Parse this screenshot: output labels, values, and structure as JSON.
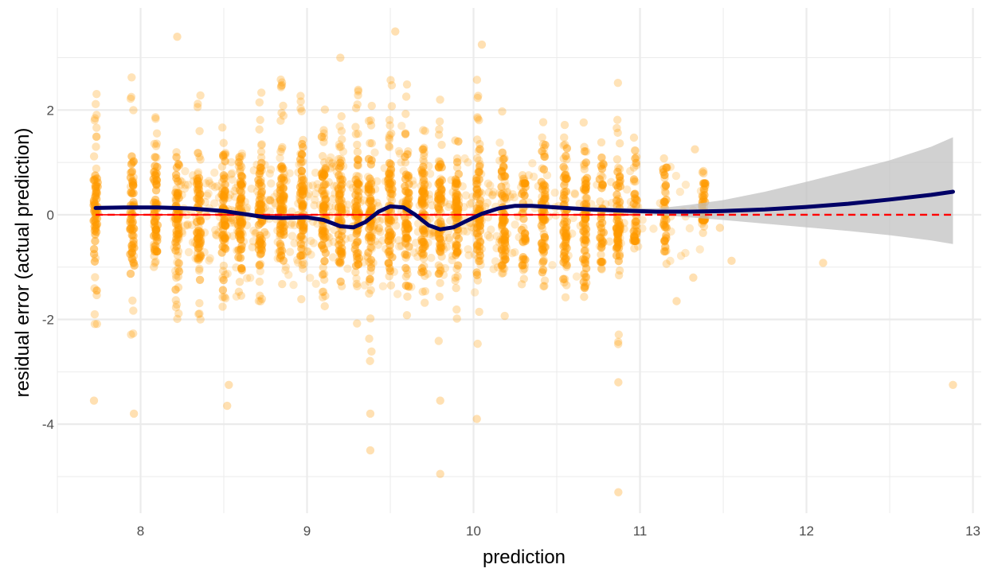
{
  "chart_data": {
    "type": "scatter",
    "title": "",
    "xlabel": "prediction",
    "ylabel": "residual error (actual prediction)",
    "xlim": [
      7.5,
      13.05
    ],
    "ylim": [
      -5.7,
      3.95
    ],
    "x_ticks": [
      8,
      9,
      10,
      11,
      12,
      13
    ],
    "y_ticks": [
      -4,
      -2,
      0,
      2
    ],
    "x_tick_labels": [
      "8",
      "9",
      "10",
      "11",
      "12",
      "13"
    ],
    "y_tick_labels": [
      "-4",
      "-2",
      "0",
      "2"
    ],
    "grid": true,
    "legend": "none",
    "colors": {
      "points": "#ff9900",
      "smooth": "#000066",
      "confidence_band": "#bfbfbf",
      "reference": "#ff0000",
      "grid": "#ebebeb"
    },
    "reference_line": {
      "y": 0,
      "x_range": [
        7.73,
        12.88
      ],
      "style": "dashed"
    },
    "smooth": {
      "x": [
        7.73,
        7.9,
        8.1,
        8.3,
        8.5,
        8.65,
        8.75,
        8.85,
        9.0,
        9.1,
        9.2,
        9.28,
        9.35,
        9.43,
        9.5,
        9.58,
        9.65,
        9.73,
        9.8,
        9.88,
        9.95,
        10.05,
        10.15,
        10.25,
        10.35,
        10.5,
        10.7,
        10.9,
        11.1,
        11.3,
        11.5,
        11.75,
        12.0,
        12.25,
        12.5,
        12.75,
        12.88
      ],
      "y": [
        0.13,
        0.14,
        0.14,
        0.12,
        0.07,
        0.0,
        -0.05,
        -0.06,
        -0.05,
        -0.1,
        -0.22,
        -0.24,
        -0.14,
        0.06,
        0.16,
        0.14,
        0.0,
        -0.2,
        -0.28,
        -0.24,
        -0.13,
        0.02,
        0.12,
        0.17,
        0.17,
        0.14,
        0.1,
        0.08,
        0.06,
        0.06,
        0.07,
        0.1,
        0.15,
        0.21,
        0.29,
        0.38,
        0.44
      ],
      "lower": [
        0.09,
        0.11,
        0.11,
        0.09,
        0.04,
        -0.03,
        -0.08,
        -0.09,
        -0.08,
        -0.13,
        -0.25,
        -0.27,
        -0.17,
        0.03,
        0.13,
        0.11,
        -0.03,
        -0.23,
        -0.31,
        -0.27,
        -0.16,
        -0.01,
        0.09,
        0.14,
        0.14,
        0.11,
        0.06,
        0.03,
        0.0,
        -0.05,
        -0.1,
        -0.17,
        -0.24,
        -0.31,
        -0.39,
        -0.49,
        -0.56
      ],
      "upper": [
        0.17,
        0.17,
        0.17,
        0.15,
        0.1,
        0.03,
        -0.02,
        -0.03,
        -0.02,
        -0.07,
        -0.19,
        -0.21,
        -0.11,
        0.09,
        0.19,
        0.17,
        0.03,
        -0.17,
        -0.25,
        -0.21,
        -0.1,
        0.05,
        0.15,
        0.2,
        0.2,
        0.17,
        0.14,
        0.13,
        0.12,
        0.19,
        0.28,
        0.44,
        0.63,
        0.83,
        1.04,
        1.3,
        1.48
      ]
    },
    "point_columns": [
      {
        "x": 7.73,
        "ymin": -2.5,
        "ymax": 2.35
      },
      {
        "x": 7.95,
        "ymin": -2.7,
        "ymax": 3.15
      },
      {
        "x": 8.09,
        "ymin": -1.0,
        "ymax": 2.2
      },
      {
        "x": 8.22,
        "ymin": -2.0,
        "ymax": 1.4
      },
      {
        "x": 8.35,
        "ymin": -2.4,
        "ymax": 2.3
      },
      {
        "x": 8.5,
        "ymin": -2.3,
        "ymax": 1.9
      },
      {
        "x": 8.6,
        "ymin": -1.6,
        "ymax": 1.5
      },
      {
        "x": 8.72,
        "ymin": -1.9,
        "ymax": 2.4
      },
      {
        "x": 8.85,
        "ymin": -1.9,
        "ymax": 2.6
      },
      {
        "x": 8.97,
        "ymin": -1.7,
        "ymax": 2.3
      },
      {
        "x": 9.1,
        "ymin": -1.8,
        "ymax": 2.5
      },
      {
        "x": 9.2,
        "ymin": -1.6,
        "ymax": 2.8
      },
      {
        "x": 9.3,
        "ymin": -2.1,
        "ymax": 2.4
      },
      {
        "x": 9.38,
        "ymin": -3.0,
        "ymax": 2.2
      },
      {
        "x": 9.5,
        "ymin": -1.5,
        "ymax": 2.8
      },
      {
        "x": 9.6,
        "ymin": -2.0,
        "ymax": 2.5
      },
      {
        "x": 9.7,
        "ymin": -1.7,
        "ymax": 1.8
      },
      {
        "x": 9.8,
        "ymin": -2.5,
        "ymax": 2.3
      },
      {
        "x": 9.9,
        "ymin": -2.2,
        "ymax": 1.7
      },
      {
        "x": 10.03,
        "ymin": -2.7,
        "ymax": 2.6
      },
      {
        "x": 10.18,
        "ymin": -2.0,
        "ymax": 2.0
      },
      {
        "x": 10.3,
        "ymin": -1.6,
        "ymax": 0.9
      },
      {
        "x": 10.42,
        "ymin": -1.4,
        "ymax": 1.9
      },
      {
        "x": 10.55,
        "ymin": -2.4,
        "ymax": 1.8
      },
      {
        "x": 10.67,
        "ymin": -1.7,
        "ymax": 1.8
      },
      {
        "x": 10.77,
        "ymin": -1.2,
        "ymax": 1.6
      },
      {
        "x": 10.87,
        "ymin": -2.6,
        "ymax": 2.6
      },
      {
        "x": 10.97,
        "ymin": -0.8,
        "ymax": 1.7
      },
      {
        "x": 11.15,
        "ymin": -1.0,
        "ymax": 1.2
      },
      {
        "x": 11.38,
        "ymin": -0.4,
        "ymax": 0.9
      }
    ],
    "outliers": [
      {
        "x": 7.72,
        "y": -3.55
      },
      {
        "x": 7.96,
        "y": -3.8
      },
      {
        "x": 8.52,
        "y": -3.65
      },
      {
        "x": 8.53,
        "y": -3.25
      },
      {
        "x": 9.38,
        "y": -3.8
      },
      {
        "x": 9.38,
        "y": -4.5
      },
      {
        "x": 9.8,
        "y": -3.55
      },
      {
        "x": 9.8,
        "y": -4.95
      },
      {
        "x": 10.02,
        "y": -3.9
      },
      {
        "x": 10.87,
        "y": -5.3
      },
      {
        "x": 10.87,
        "y": -3.2
      },
      {
        "x": 11.22,
        "y": -1.65
      },
      {
        "x": 11.32,
        "y": -1.2
      },
      {
        "x": 11.55,
        "y": -0.88
      },
      {
        "x": 12.1,
        "y": -0.92
      },
      {
        "x": 12.88,
        "y": -3.25
      },
      {
        "x": 9.53,
        "y": 3.5
      },
      {
        "x": 10.05,
        "y": 3.25
      },
      {
        "x": 8.22,
        "y": 3.4
      },
      {
        "x": 9.2,
        "y": 3.0
      },
      {
        "x": 11.33,
        "y": 1.25
      },
      {
        "x": 11.48,
        "y": -0.25
      }
    ]
  }
}
